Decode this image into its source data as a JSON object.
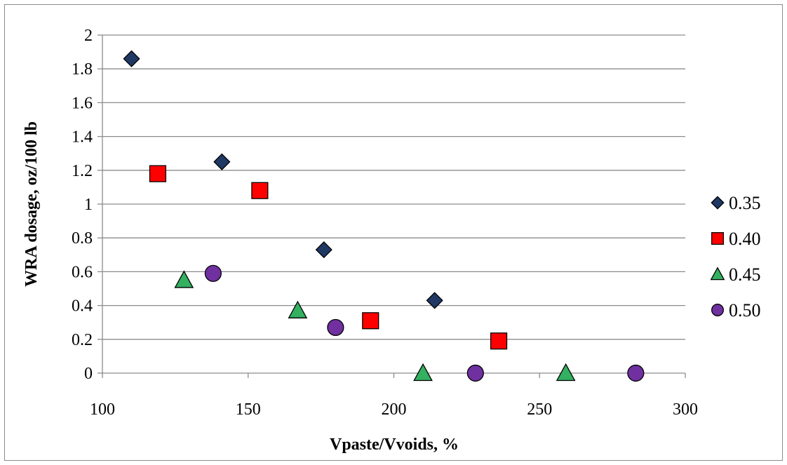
{
  "chart_data": {
    "type": "scatter",
    "title": "",
    "xlabel": "Vpaste/Vvoids, %",
    "ylabel": "WRA dosage, oz/100 lb",
    "xlim": [
      100,
      300
    ],
    "ylim": [
      0,
      2
    ],
    "x_ticks": [
      "100",
      "150",
      "200",
      "250",
      "300"
    ],
    "y_ticks": [
      "0",
      "0.2",
      "0.4",
      "0.6",
      "0.8",
      "1",
      "1.2",
      "1.4",
      "1.6",
      "1.8",
      "2"
    ],
    "grid": "horizontal",
    "legend_position": "right",
    "series": [
      {
        "name": "0.35",
        "marker": "diamond",
        "color": "#1f3864",
        "points": [
          [
            110,
            1.86
          ],
          [
            141,
            1.25
          ],
          [
            176,
            0.73
          ],
          [
            214,
            0.43
          ]
        ]
      },
      {
        "name": "0.40",
        "marker": "square",
        "color": "#ff0000",
        "points": [
          [
            119,
            1.18
          ],
          [
            154,
            1.08
          ],
          [
            192,
            0.31
          ],
          [
            236,
            0.19
          ]
        ]
      },
      {
        "name": "0.45",
        "marker": "triangle",
        "color": "#33b060",
        "points": [
          [
            128,
            0.55
          ],
          [
            167,
            0.37
          ],
          [
            210,
            0.0
          ],
          [
            259,
            0.0
          ]
        ]
      },
      {
        "name": "0.50",
        "marker": "circle",
        "color": "#7030a0",
        "points": [
          [
            138,
            0.59
          ],
          [
            180,
            0.27
          ],
          [
            228,
            0.0
          ],
          [
            283,
            0.0
          ]
        ]
      }
    ]
  }
}
